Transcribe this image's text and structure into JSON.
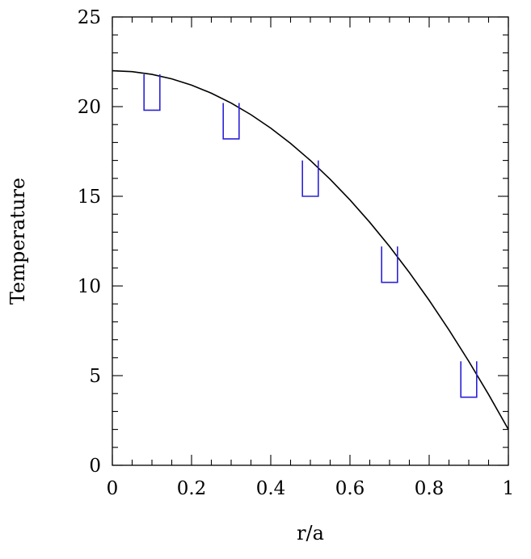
{
  "chart_data": {
    "type": "line",
    "title": "",
    "xlabel": "r/a",
    "ylabel": "Temperature",
    "xlim": [
      0,
      1
    ],
    "ylim": [
      0,
      25
    ],
    "x_ticks": [
      0,
      0.2,
      0.4,
      0.6,
      0.8,
      1
    ],
    "x_tick_labels": [
      "0",
      "0.2",
      "0.4",
      "0.6",
      "0.8",
      "1"
    ],
    "y_ticks": [
      0,
      5,
      10,
      15,
      20,
      25
    ],
    "y_tick_labels": [
      "0",
      "5",
      "10",
      "15",
      "20",
      "25"
    ],
    "x_minor_step": 0.05,
    "y_minor_step": 1,
    "grid": false,
    "legend": "none",
    "series": [
      {
        "kind": "curve",
        "color": "#000000",
        "x": [
          0,
          0.05,
          0.1,
          0.15,
          0.2,
          0.25,
          0.3,
          0.35,
          0.4,
          0.45,
          0.5,
          0.55,
          0.6,
          0.65,
          0.7,
          0.75,
          0.8,
          0.85,
          0.9,
          0.95,
          1.0
        ],
        "y": [
          22.0,
          21.95,
          21.8,
          21.55,
          21.2,
          20.75,
          20.2,
          19.55,
          18.8,
          17.95,
          17.0,
          15.95,
          14.8,
          13.55,
          12.2,
          10.75,
          9.2,
          7.55,
          5.8,
          3.95,
          2.0
        ]
      },
      {
        "kind": "bins",
        "color": "#2b22d6",
        "points": [
          {
            "x_low": 0.08,
            "x_high": 0.12,
            "y_low": 19.8,
            "y_high": 21.8
          },
          {
            "x_low": 0.28,
            "x_high": 0.32,
            "y_low": 18.2,
            "y_high": 20.2
          },
          {
            "x_low": 0.48,
            "x_high": 0.52,
            "y_low": 15.0,
            "y_high": 17.0
          },
          {
            "x_low": 0.68,
            "x_high": 0.72,
            "y_low": 10.2,
            "y_high": 12.2
          },
          {
            "x_low": 0.88,
            "x_high": 0.92,
            "y_low": 3.8,
            "y_high": 5.8
          }
        ]
      }
    ]
  }
}
